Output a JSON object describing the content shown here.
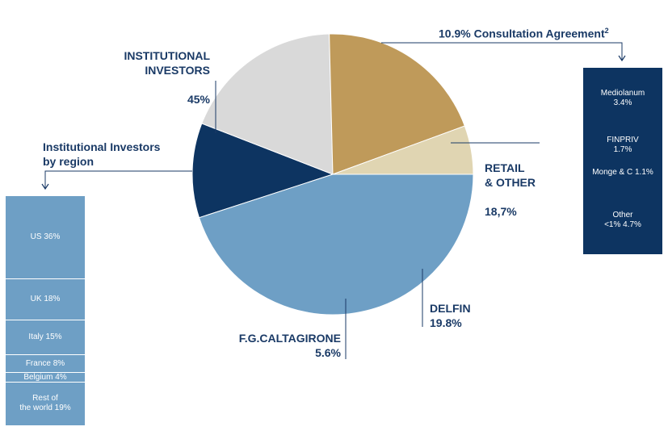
{
  "chart_data": {
    "type": "pie",
    "slices": [
      {
        "label": "INSTITUTIONAL\nINVESTORS",
        "value_text": "45%",
        "value": 45.0,
        "color": "#6e9fc5"
      },
      {
        "label": "10.9% Consultation Agreement",
        "superscript": "2",
        "value_text": "10.9%",
        "value": 10.9,
        "color": "#0d3461"
      },
      {
        "label": "RETAIL\n& OTHER",
        "value_text": "18,7%",
        "value": 18.7,
        "color": "#d9d9d9"
      },
      {
        "label": "DELFIN",
        "value_text": "19.8%",
        "value": 19.8,
        "color": "#bf9a5a"
      },
      {
        "label": "F.G.CALTAGIRONE",
        "value_text": "5.6%",
        "value": 5.6,
        "color": "#e0d5b2"
      }
    ],
    "institutional_breakdown": {
      "title": "Institutional Investors\nby region",
      "items": [
        {
          "label": "US 36%",
          "value": 36
        },
        {
          "label": "UK 18%",
          "value": 18
        },
        {
          "label": "Italy 15%",
          "value": 15
        },
        {
          "label": "France 8%",
          "value": 8
        },
        {
          "label": "Belgium 4%",
          "value": 4
        },
        {
          "label": "Rest of\nthe world 19%",
          "value": 19
        }
      ]
    },
    "consultation_breakdown": {
      "items": [
        {
          "label": "Mediolanum\n3.4%"
        },
        {
          "label": "FINPRIV\n1.7%"
        },
        {
          "label": "Monge & C 1.1%"
        },
        {
          "label": "Other\n<1% 4.7%"
        }
      ]
    }
  },
  "colors": {
    "accent": "#1a3a66",
    "navy": "#0d3461",
    "blue": "#6e9fc5",
    "gold": "#bf9a5a",
    "grey": "#d9d9d9",
    "sand": "#e0d5b2"
  }
}
